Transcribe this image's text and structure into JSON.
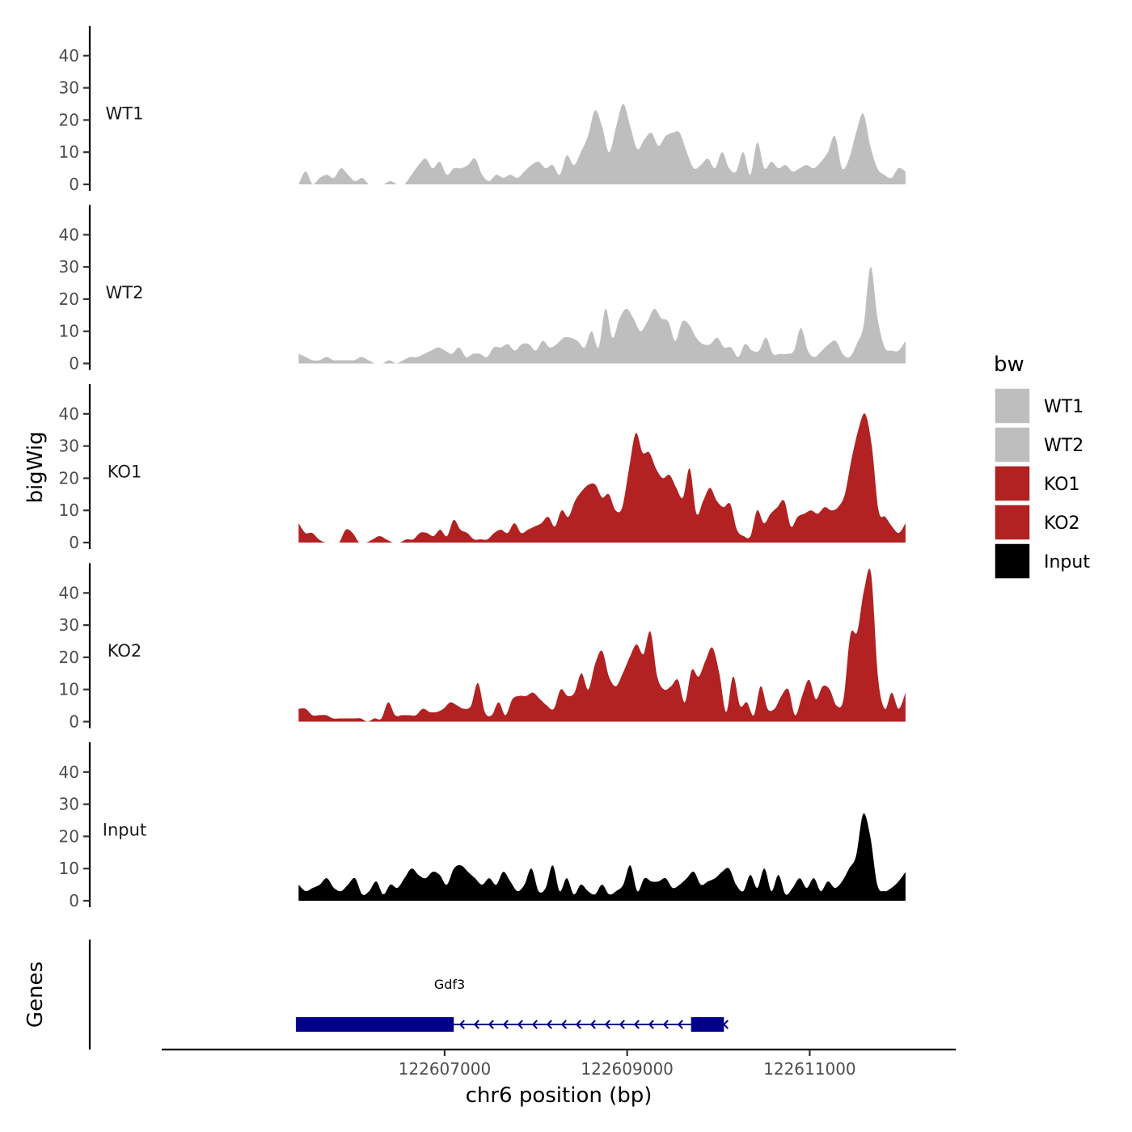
{
  "chart_data": {
    "type": "area",
    "xlabel": "chr6 position (bp)",
    "ylabel": "bigWig",
    "gene_track_label": "Genes",
    "xlim": [
      122603900,
      122612600
    ],
    "x_ticks": [
      122607000,
      122609000,
      122611000
    ],
    "x_tick_labels": [
      "122607000",
      "122609000",
      "122611000"
    ],
    "ylim": [
      0,
      48
    ],
    "y_ticks": [
      0,
      10,
      20,
      30,
      40
    ],
    "y_tick_labels": [
      "0",
      "10",
      "20",
      "30",
      "40"
    ],
    "x_range": [
      122605400,
      122612050
    ],
    "legend": {
      "title": "bw",
      "position": "right",
      "entries": [
        {
          "label": "WT1",
          "color": "#bebebe"
        },
        {
          "label": "WT2",
          "color": "#bebebe"
        },
        {
          "label": "KO1",
          "color": "#b22222"
        },
        {
          "label": "KO2",
          "color": "#b22222"
        },
        {
          "label": "Input",
          "color": "#000000"
        }
      ]
    },
    "series": [
      {
        "name": "WT1",
        "color": "#bebebe",
        "values": [
          0,
          4,
          0,
          2,
          3,
          2,
          5,
          3,
          1,
          2,
          0,
          0,
          0,
          1,
          0,
          0,
          3,
          6,
          8,
          5,
          7,
          3,
          5,
          5,
          6,
          8,
          3,
          1,
          3,
          2,
          3,
          2,
          4,
          6,
          7,
          5,
          6,
          3,
          9,
          6,
          10,
          15,
          23,
          18,
          10,
          18,
          25,
          18,
          11,
          14,
          16,
          12,
          15,
          16,
          16,
          10,
          5,
          6,
          8,
          5,
          10,
          5,
          4,
          10,
          3,
          13,
          5,
          7,
          5,
          6,
          4,
          5,
          6,
          5,
          7,
          10,
          15,
          5,
          8,
          16,
          22,
          12,
          5,
          3,
          2,
          5,
          4
        ]
      },
      {
        "name": "WT2",
        "color": "#bebebe",
        "values": [
          3,
          2,
          1,
          1,
          2,
          1,
          1,
          1,
          1,
          2,
          1,
          0,
          0,
          1,
          0,
          1,
          2,
          2,
          3,
          4,
          5,
          4,
          3,
          5,
          2,
          3,
          3,
          2,
          5,
          5,
          6,
          4,
          6,
          6,
          4,
          7,
          5,
          6,
          8,
          8,
          7,
          5,
          10,
          5,
          17,
          8,
          14,
          17,
          14,
          10,
          13,
          17,
          14,
          13,
          7,
          13,
          12,
          8,
          6,
          6,
          8,
          5,
          5,
          2,
          6,
          4,
          4,
          8,
          3,
          3,
          3,
          4,
          11,
          4,
          2,
          4,
          6,
          7,
          3,
          2,
          6,
          12,
          30,
          14,
          5,
          4,
          4,
          7
        ]
      },
      {
        "name": "KO1",
        "color": "#b22222",
        "values": [
          6,
          3,
          3,
          1,
          0,
          0,
          0,
          4,
          3,
          0,
          0,
          1,
          2,
          1,
          0,
          0,
          1,
          1,
          3,
          3,
          2,
          4,
          2,
          7,
          4,
          3,
          1,
          1,
          1,
          3,
          4,
          3,
          6,
          3,
          4,
          5,
          6,
          8,
          5,
          10,
          8,
          13,
          16,
          18,
          18,
          14,
          15,
          10,
          11,
          23,
          34,
          28,
          28,
          23,
          20,
          21,
          17,
          14,
          23,
          9,
          13,
          17,
          13,
          11,
          12,
          4,
          2,
          2,
          10,
          6,
          9,
          11,
          13,
          5,
          8,
          9,
          10,
          9,
          11,
          10,
          11,
          15,
          26,
          35,
          40,
          30,
          10,
          8,
          5,
          3,
          6
        ]
      },
      {
        "name": "KO2",
        "color": "#b22222",
        "values": [
          4,
          4,
          2,
          2,
          2,
          1,
          1,
          1,
          1,
          1,
          0,
          1,
          1,
          6,
          2,
          2,
          2,
          2,
          4,
          3,
          3,
          4,
          6,
          5,
          4,
          5,
          12,
          3,
          2,
          6,
          2,
          7,
          8,
          8,
          9,
          7,
          5,
          4,
          10,
          8,
          9,
          15,
          10,
          18,
          22,
          14,
          11,
          15,
          20,
          24,
          21,
          28,
          14,
          10,
          11,
          13,
          6,
          16,
          14,
          19,
          23,
          15,
          3,
          14,
          5,
          6,
          2,
          11,
          4,
          4,
          8,
          10,
          2,
          8,
          13,
          7,
          11,
          10,
          5,
          7,
          27,
          28,
          41,
          46,
          14,
          4,
          9,
          4,
          9
        ]
      },
      {
        "name": "Input",
        "color": "#000000",
        "values": [
          5,
          3,
          4,
          5,
          7,
          4,
          3,
          5,
          7,
          2,
          3,
          6,
          2,
          5,
          4,
          7,
          10,
          8,
          7,
          9,
          8,
          5,
          10,
          11,
          9,
          7,
          5,
          7,
          5,
          9,
          6,
          3,
          5,
          10,
          3,
          4,
          11,
          3,
          7,
          2,
          5,
          3,
          2,
          5,
          2,
          3,
          5,
          11,
          3,
          7,
          6,
          6,
          7,
          4,
          5,
          7,
          9,
          5,
          6,
          7,
          9,
          10,
          5,
          3,
          8,
          4,
          10,
          3,
          8,
          2,
          4,
          7,
          4,
          7,
          3,
          6,
          4,
          6,
          10,
          14,
          27,
          20,
          5,
          3,
          4,
          6,
          9
        ]
      }
    ],
    "genes": [
      {
        "name": "Gdf3",
        "start": 122605370,
        "end": 122610060,
        "strand": "-",
        "exons": [
          [
            122605370,
            122607100
          ],
          [
            122609700,
            122610060
          ]
        ]
      }
    ]
  }
}
